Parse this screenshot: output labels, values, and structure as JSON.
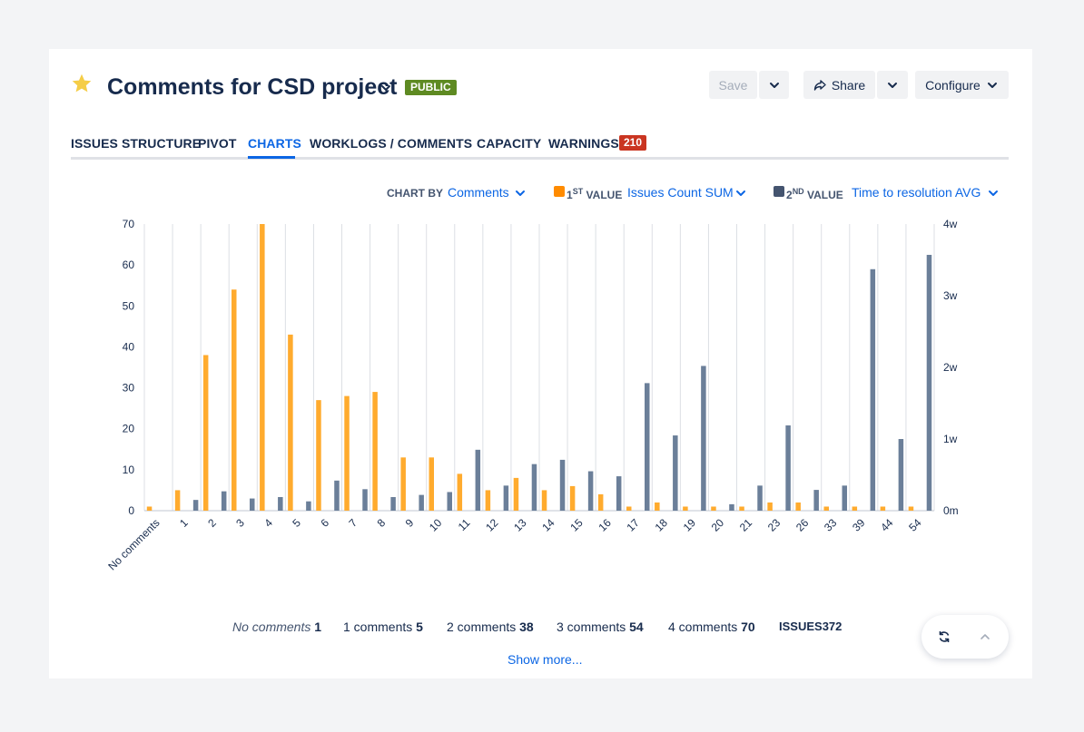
{
  "header": {
    "title": "Comments for CSD project",
    "badge": "PUBLIC",
    "save_label": "Save",
    "share_label": "Share",
    "configure_label": "Configure"
  },
  "tabs": [
    {
      "label": "ISSUES STRUCTURE"
    },
    {
      "label": "PIVOT"
    },
    {
      "label": "CHARTS",
      "active": true
    },
    {
      "label": "WORKLOGS / COMMENTS"
    },
    {
      "label": "CAPACITY"
    },
    {
      "label": "WARNINGS",
      "count": "210"
    }
  ],
  "controls": {
    "chart_by_label": "CHART BY",
    "chart_by_value": "Comments",
    "first_label_prefix": "1",
    "first_label_sup": "ST",
    "first_label_suffix": " VALUE",
    "first_value": "Issues Count SUM",
    "second_label_prefix": "2",
    "second_label_sup": "ND",
    "second_label_suffix": " VALUE",
    "second_value": "Time to resolution AVG"
  },
  "colors": {
    "first": "#ffab2e",
    "second": "#6b7f99",
    "first_swatch": "#ff8b00",
    "second_swatch": "#44546f"
  },
  "chart_data": {
    "type": "bar",
    "categories": [
      "No comments",
      "1",
      "2",
      "3",
      "4",
      "5",
      "6",
      "7",
      "8",
      "9",
      "10",
      "11",
      "12",
      "13",
      "14",
      "15",
      "16",
      "17",
      "18",
      "19",
      "20",
      "21",
      "23",
      "26",
      "33",
      "39",
      "44",
      "54"
    ],
    "series": [
      {
        "axis": "left",
        "values": [
          1,
          5,
          38,
          54,
          70,
          43,
          27,
          28,
          29,
          13,
          13,
          9,
          5,
          8,
          5,
          6,
          4,
          1,
          2,
          1,
          1,
          1,
          2,
          2,
          1,
          1,
          1,
          1
        ]
      },
      {
        "axis": "right",
        "unit": "weeks",
        "values": [
          0,
          0.15,
          0.27,
          0.17,
          0.19,
          0.13,
          0.42,
          0.3,
          0.19,
          0.22,
          0.26,
          0.85,
          0.35,
          0.65,
          0.71,
          0.55,
          0.48,
          1.78,
          1.05,
          2.02,
          0.09,
          0.35,
          1.19,
          0.29,
          0.35,
          3.37,
          1.0,
          3.57
        ]
      }
    ],
    "ylim_left": [
      0,
      70
    ],
    "ylim_right": [
      0,
      4
    ],
    "yticks_left": [
      "0",
      "10",
      "20",
      "30",
      "40",
      "50",
      "60",
      "70"
    ],
    "yticks_right": [
      "0m",
      "1w",
      "2w",
      "3w",
      "4w"
    ],
    "grid": "vertical"
  },
  "summary": {
    "items": [
      {
        "label": "No comments",
        "value": "1"
      },
      {
        "label": "1 comments",
        "value": "5"
      },
      {
        "label": "2 comments",
        "value": "38"
      },
      {
        "label": "3 comments",
        "value": "54"
      },
      {
        "label": "4 comments",
        "value": "70"
      }
    ],
    "total_label": "ISSUES",
    "total_value": "372",
    "show_more": "Show more..."
  }
}
